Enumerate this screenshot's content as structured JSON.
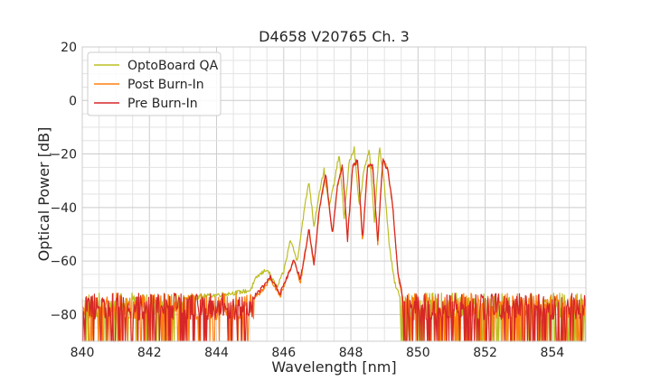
{
  "chart_data": {
    "type": "line",
    "title": "D4658 V20765 Ch. 3",
    "xlabel": "Wavelength [nm]",
    "ylabel": "Optical Power [dB]",
    "xlim": [
      840,
      855
    ],
    "ylim": [
      -90,
      20
    ],
    "x_ticks": [
      840,
      842,
      844,
      846,
      848,
      850,
      852,
      854
    ],
    "x_tick_labels": [
      "840",
      "842",
      "844",
      "846",
      "848",
      "850",
      "852",
      "854"
    ],
    "y_ticks": [
      20,
      0,
      -20,
      -40,
      -60,
      -80
    ],
    "y_tick_labels": [
      "20",
      "0",
      "−20",
      "−40",
      "−60",
      "−80"
    ],
    "grid": true,
    "legend_position": "top-left",
    "noise_floor_db": -77,
    "noise_dropouts_to_db": -90,
    "series": [
      {
        "name": "OptoBoard QA",
        "color": "#bcbd22",
        "x": [
          840,
          843,
          844.5,
          845,
          845.2,
          845.5,
          845.8,
          846.0,
          846.2,
          846.4,
          846.6,
          846.75,
          846.9,
          847.05,
          847.2,
          847.35,
          847.5,
          847.65,
          847.8,
          847.95,
          848.1,
          848.25,
          848.4,
          848.55,
          848.7,
          848.85,
          849.0,
          849.15,
          849.3,
          849.5,
          850,
          855
        ],
        "values": [
          -77,
          -74,
          -72,
          -71,
          -66,
          -63,
          -70,
          -64,
          -52,
          -60,
          -42,
          -30,
          -47,
          -35,
          -26,
          -40,
          -31,
          -20,
          -44,
          -23,
          -18,
          -40,
          -25,
          -19,
          -45,
          -17,
          -32,
          -55,
          -68,
          -75,
          -77,
          -77
        ]
      },
      {
        "name": "Post Burn-In",
        "color": "#ff7f0e",
        "x": [
          840,
          844.5,
          845.0,
          845.3,
          845.6,
          845.9,
          846.1,
          846.3,
          846.5,
          846.75,
          846.9,
          847.05,
          847.25,
          847.45,
          847.6,
          847.75,
          847.9,
          848.05,
          848.2,
          848.35,
          848.5,
          848.65,
          848.8,
          848.95,
          849.1,
          849.25,
          849.4,
          849.6,
          850,
          855
        ],
        "values": [
          -77,
          -76,
          -75,
          -72,
          -67,
          -73,
          -66,
          -60,
          -68,
          -48,
          -62,
          -42,
          -28,
          -50,
          -32,
          -24,
          -52,
          -25,
          -23,
          -53,
          -24,
          -25,
          -54,
          -22,
          -26,
          -40,
          -65,
          -78,
          -77,
          -77
        ]
      },
      {
        "name": "Pre Burn-In",
        "color": "#d62728",
        "x": [
          840,
          844.5,
          845.0,
          845.3,
          845.6,
          845.9,
          846.1,
          846.3,
          846.5,
          846.75,
          846.9,
          847.05,
          847.25,
          847.45,
          847.6,
          847.75,
          847.9,
          848.05,
          848.2,
          848.35,
          848.5,
          848.65,
          848.8,
          848.95,
          849.1,
          849.25,
          849.4,
          849.6,
          850,
          855
        ],
        "values": [
          -77,
          -76,
          -75,
          -71,
          -66,
          -72,
          -66,
          -60,
          -67,
          -48,
          -61,
          -42,
          -27,
          -50,
          -32,
          -24,
          -52,
          -25,
          -22,
          -52,
          -24,
          -24,
          -53,
          -22,
          -26,
          -40,
          -64,
          -77,
          -77,
          -77
        ]
      }
    ]
  }
}
